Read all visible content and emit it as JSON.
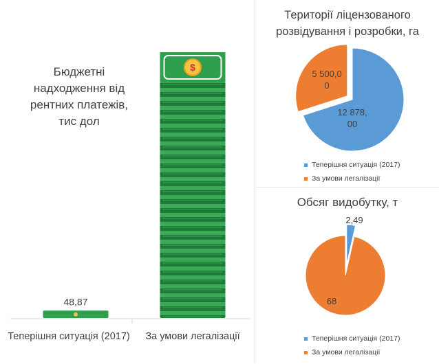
{
  "charts": {
    "budget": {
      "title": "Бюджетні надходження від рентних платежів, тис дол"
    },
    "territory": {
      "title": "Території ліцензованого розвідування і розробки, га"
    },
    "output": {
      "title": "Обсяг видобутку, т"
    }
  },
  "chart_data": [
    {
      "type": "bar",
      "title": "Бюджетні надходження від рентних платежів, тис дол",
      "categories": [
        "Теперішня ситуація (2017)",
        "За умови легалізації"
      ],
      "values": [
        48.87,
        1790
      ],
      "data_labels": [
        "48,87",
        ""
      ],
      "ylim": [
        0,
        1790
      ],
      "grid": false,
      "bar_style": "stacked banknotes",
      "colors": [
        "#2e9c4a",
        "#2e9c4a"
      ]
    },
    {
      "type": "pie",
      "title": "Території ліцензованого розвідування і розробки, га",
      "categories": [
        "Теперішня ситуація (2017)",
        "За умови легалізації"
      ],
      "values": [
        12878.0,
        5500.0
      ],
      "data_labels": [
        "12 878, 00",
        "5 500,0 0"
      ],
      "colors": [
        "#5b9bd5",
        "#ed7d31"
      ],
      "legend": "bottom"
    },
    {
      "type": "pie",
      "title": "Обсяг видобутку, т",
      "categories": [
        "Теперішня ситуація (2017)",
        "За умови легалізації"
      ],
      "values": [
        2.49,
        68
      ],
      "data_labels": [
        "2,49",
        "68"
      ],
      "colors": [
        "#5b9bd5",
        "#ed7d31"
      ],
      "legend": "bottom"
    }
  ]
}
